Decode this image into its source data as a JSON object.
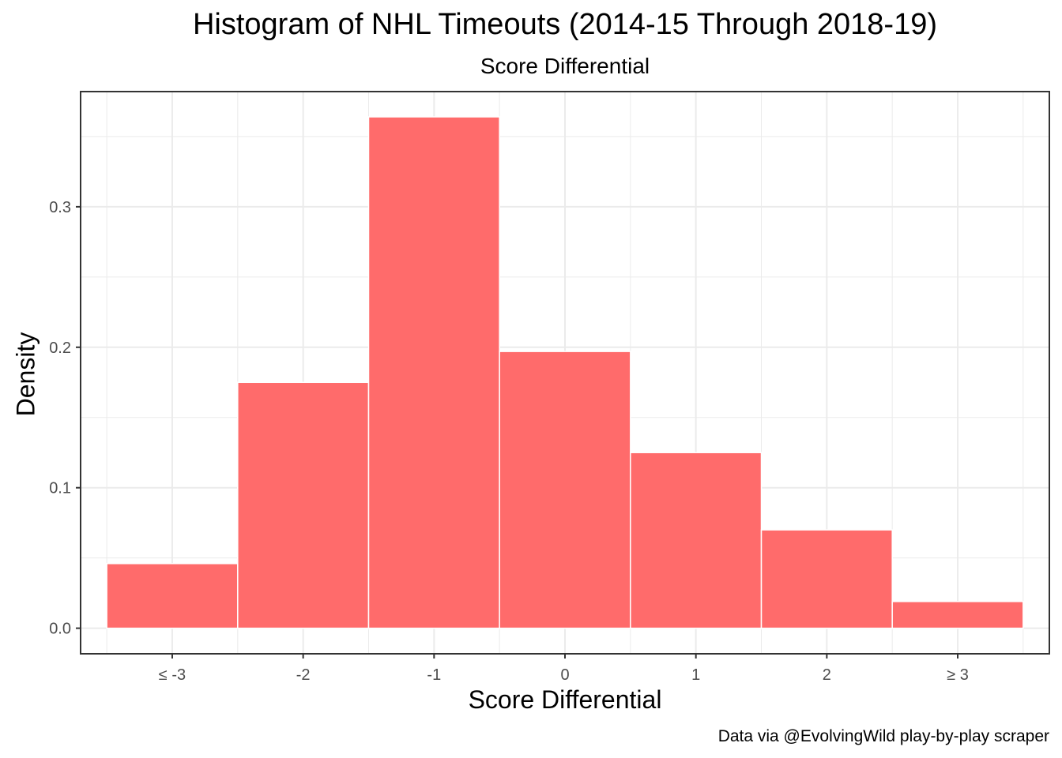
{
  "chart_data": {
    "type": "bar",
    "title": "Histogram of NHL Timeouts (2014-15 Through 2018-19)",
    "subtitle": "Score Differential",
    "xlabel": "Score Differential",
    "ylabel": "Density",
    "caption": "Data via @EvolvingWild play-by-play scraper",
    "categories": [
      "≤ -3",
      "-2",
      "-1",
      "0",
      "1",
      "2",
      "≥ 3"
    ],
    "values": [
      0.046,
      0.175,
      0.364,
      0.197,
      0.125,
      0.07,
      0.019
    ],
    "y_ticks": [
      0.0,
      0.1,
      0.2,
      0.3
    ],
    "y_tick_labels": [
      "0.0",
      "0.1",
      "0.2",
      "0.3"
    ],
    "ylim": [
      -0.0182,
      0.382
    ],
    "bar_color": "#ff6b6b",
    "bar_outline": "#ffffff",
    "grid": true,
    "grid_color": "#ebebeb",
    "panel_border": "#333333",
    "legend": "none"
  }
}
